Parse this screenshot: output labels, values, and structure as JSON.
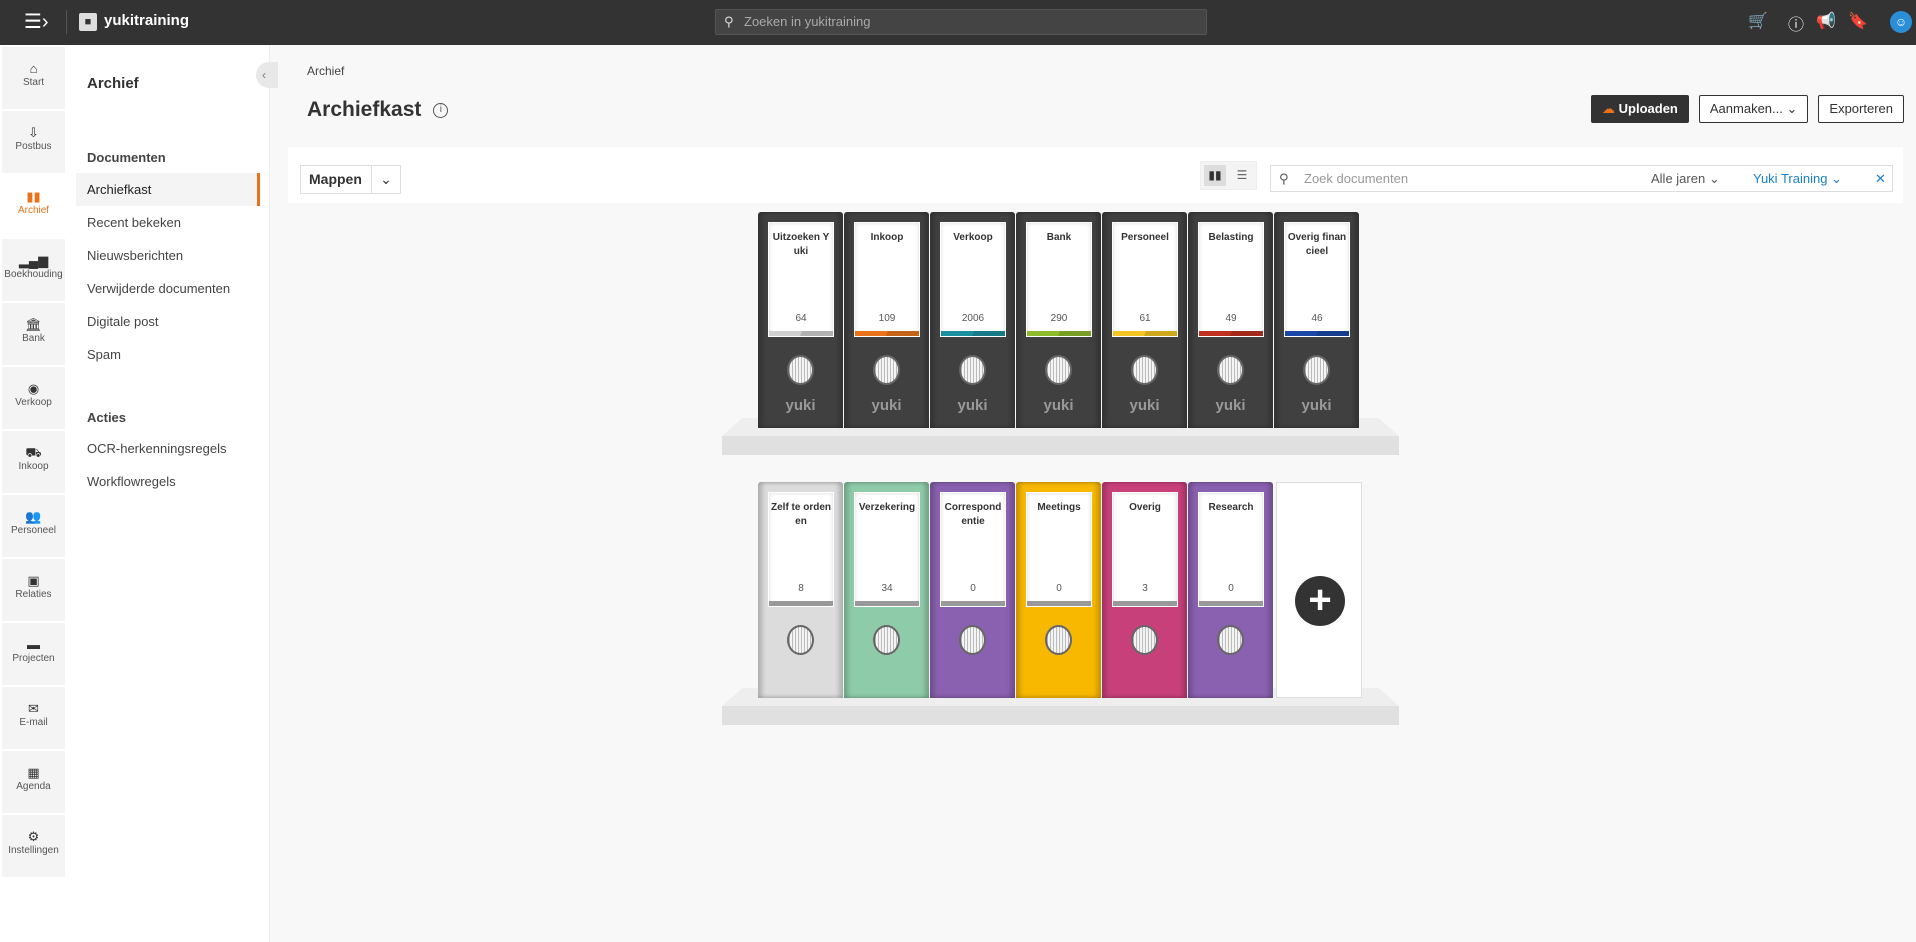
{
  "topbar": {
    "org_name": "yukitraining",
    "search_placeholder": "Zoeken in yukitraining",
    "icons": [
      "menu-icon",
      "briefcase-icon",
      "cart-icon",
      "info-icon",
      "megaphone-icon",
      "bookmark-icon",
      "user-avatar-icon"
    ]
  },
  "rail": [
    {
      "label": "Start",
      "icon": "home-icon",
      "glyph": "⌂"
    },
    {
      "label": "Postbus",
      "icon": "inbox-icon",
      "glyph": "⇩"
    },
    {
      "label": "Archief",
      "icon": "archive-icon",
      "glyph": "▮▮",
      "active": true
    },
    {
      "label": "Boekhouding",
      "icon": "chart-icon",
      "glyph": "▂▄▆"
    },
    {
      "label": "Bank",
      "icon": "bank-icon",
      "glyph": "🏛"
    },
    {
      "label": "Verkoop",
      "icon": "handshake-icon",
      "glyph": "◉"
    },
    {
      "label": "Inkoop",
      "icon": "truck-icon",
      "glyph": "⛟"
    },
    {
      "label": "Personeel",
      "icon": "users-icon",
      "glyph": "👥"
    },
    {
      "label": "Relaties",
      "icon": "address-book-icon",
      "glyph": "▣"
    },
    {
      "label": "Projecten",
      "icon": "folder-icon",
      "glyph": "▬"
    },
    {
      "label": "E-mail",
      "icon": "envelope-icon",
      "glyph": "✉"
    },
    {
      "label": "Agenda",
      "icon": "calendar-icon",
      "glyph": "▦"
    },
    {
      "label": "Instellingen",
      "icon": "gear-icon",
      "glyph": "⚙"
    }
  ],
  "subnav": {
    "title": "Archief",
    "section1": "Documenten",
    "items1": [
      "Archiefkast",
      "Recent bekeken",
      "Nieuwsberichten",
      "Verwijderde documenten",
      "Digitale post",
      "Spam"
    ],
    "section2": "Acties",
    "items2": [
      "OCR-herkenningsregels",
      "Workflowregels"
    ]
  },
  "page": {
    "breadcrumb": "Archief",
    "title": "Archiefkast",
    "upload": "Uploaden",
    "create": "Aanmaken...",
    "export": "Exporteren"
  },
  "toolbar": {
    "view": "Mappen",
    "search_placeholder": "Zoek documenten",
    "year": "Alle jaren",
    "company": "Yuki Training",
    "clear": "✕"
  },
  "shelf1": [
    {
      "name": "Uitzoeken Yuki",
      "count": "64",
      "color": "#d0d0d0"
    },
    {
      "name": "Inkoop",
      "count": "109",
      "color": "#e8731a"
    },
    {
      "name": "Verkoop",
      "count": "2006",
      "color": "#1a8fa0"
    },
    {
      "name": "Bank",
      "count": "290",
      "color": "#8dbb2a"
    },
    {
      "name": "Personeel",
      "count": "61",
      "color": "#f5c623"
    },
    {
      "name": "Belasting",
      "count": "49",
      "color": "#c0301f"
    },
    {
      "name": "Overig financieel",
      "count": "46",
      "color": "#1b47a8"
    }
  ],
  "shelf1_binder_color": "#404040",
  "shelf1_brand": "yuki",
  "shelf2": [
    {
      "name": "Zelf te ordenen",
      "count": "8",
      "color": "#dcdcdc"
    },
    {
      "name": "Verzekering",
      "count": "34",
      "color": "#8ecba9"
    },
    {
      "name": "Correspondentie",
      "count": "0",
      "color": "#8a60b0"
    },
    {
      "name": "Meetings",
      "count": "0",
      "color": "#f8b800"
    },
    {
      "name": "Overig",
      "count": "3",
      "color": "#c8407a"
    },
    {
      "name": "Research",
      "count": "0",
      "color": "#8a60b0"
    }
  ],
  "add_label": "+"
}
